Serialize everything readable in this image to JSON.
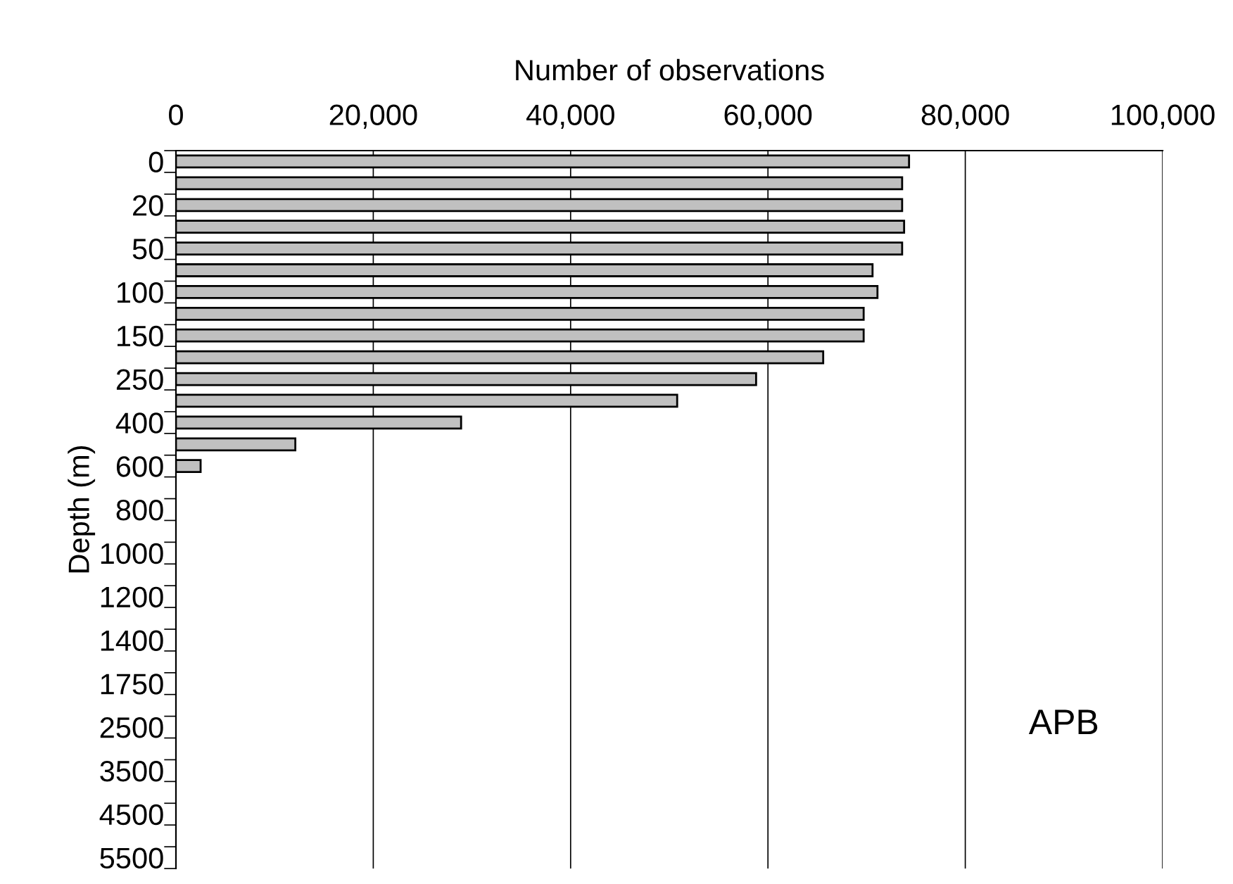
{
  "chart_data": {
    "type": "bar",
    "orientation": "horizontal",
    "xlabel": "Number of observations",
    "ylabel": "Depth (m)",
    "categories": [
      "0",
      null,
      "20",
      null,
      "50",
      null,
      "100",
      null,
      "150",
      null,
      "250",
      null,
      "400",
      null,
      "600",
      null,
      "800",
      null,
      "1000",
      null,
      "1200",
      null,
      "1400",
      null,
      "1750",
      null,
      "2500",
      null,
      "3500",
      null,
      "4500",
      null,
      "5500"
    ],
    "values": [
      74300,
      73600,
      73600,
      73800,
      73600,
      70600,
      71100,
      69700,
      69700,
      65600,
      58800,
      50800,
      28900,
      12100,
      2500,
      null,
      null,
      null,
      null,
      null,
      null,
      null,
      null,
      null,
      null,
      null,
      null,
      null,
      null,
      null,
      null,
      null,
      null
    ],
    "color": "#c0c0c0",
    "xlim": [
      0,
      100000
    ],
    "xticks": [
      {
        "value": 0,
        "label": "0"
      },
      {
        "value": 20000,
        "label": "20,000"
      },
      {
        "value": 40000,
        "label": "40,000"
      },
      {
        "value": 60000,
        "label": "60,000"
      },
      {
        "value": 80000,
        "label": "80,000"
      },
      {
        "value": 100000,
        "label": "100,000"
      }
    ],
    "grid": "x",
    "legend": false,
    "annotations": [
      "APB"
    ]
  }
}
